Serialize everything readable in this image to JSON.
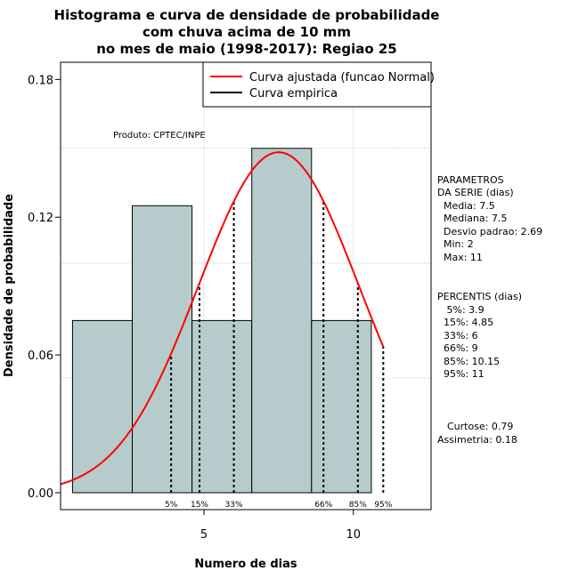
{
  "chart_data": {
    "type": "bar",
    "title_lines": [
      "Histograma e curva de densidade de probabilidade",
      "com chuva acima de 10 mm",
      "no mes de maio (1998-2017): Regiao 25"
    ],
    "xlabel": "Numero de dias",
    "ylabel": "Densidade de probabilidade",
    "xlim": [
      0.2,
      12.6
    ],
    "ylim": [
      0,
      0.1875
    ],
    "x_ticks": [
      5,
      10
    ],
    "y_ticks": [
      0.0,
      0.06,
      0.12,
      0.18
    ],
    "y_tick_labels": [
      "0.00",
      "0.06",
      "0.12",
      "0.18"
    ],
    "grid_y": [
      0.05,
      0.1,
      0.15
    ],
    "bars": [
      {
        "x0": 0.6,
        "x1": 2.6,
        "value": 0.075
      },
      {
        "x0": 2.6,
        "x1": 4.6,
        "value": 0.125
      },
      {
        "x0": 4.6,
        "x1": 6.6,
        "value": 0.075
      },
      {
        "x0": 6.6,
        "x1": 8.6,
        "value": 0.15
      },
      {
        "x0": 8.6,
        "x1": 10.6,
        "value": 0.075
      }
    ],
    "normal_curve": {
      "mean": 7.5,
      "sd": 2.69,
      "x_from": 0.2,
      "x_to": 11.0,
      "color": "#ff0000"
    },
    "percentiles": [
      {
        "label": "5%",
        "x": 3.9
      },
      {
        "label": "15%",
        "x": 4.85
      },
      {
        "label": "33%",
        "x": 6
      },
      {
        "label": "66%",
        "x": 9
      },
      {
        "label": "85%",
        "x": 10.15
      },
      {
        "label": "95%",
        "x": 11
      }
    ],
    "legend": [
      {
        "label": "Curva ajustada (funcao Normal)",
        "color": "#ff0000"
      },
      {
        "label": "Curva empirica",
        "color": "#000000"
      }
    ],
    "legend_position": "top-right",
    "annotation": "Produto: CPTEC/INPE",
    "bar_color": "#b6cccc"
  },
  "side_panel": {
    "params_title": "PARAMETROS",
    "params_subtitle": "DA SERIE (dias)",
    "media": "  Media: 7.5",
    "mediana": "  Mediana: 7.5",
    "desvio": "  Desvio padrao: 2.69",
    "min": "  Min: 2",
    "max": "  Max: 11",
    "pct_title": "PERCENTIS (dias)",
    "p5": "   5%: 3.9",
    "p15": "  15%: 4.85",
    "p33": "  33%: 6",
    "p66": "  66%: 9",
    "p85": "  85%: 10.15",
    "p95": "  95%: 11",
    "curtose": "Curtose: 0.79",
    "assimetria": "Assimetria: 0.18"
  }
}
